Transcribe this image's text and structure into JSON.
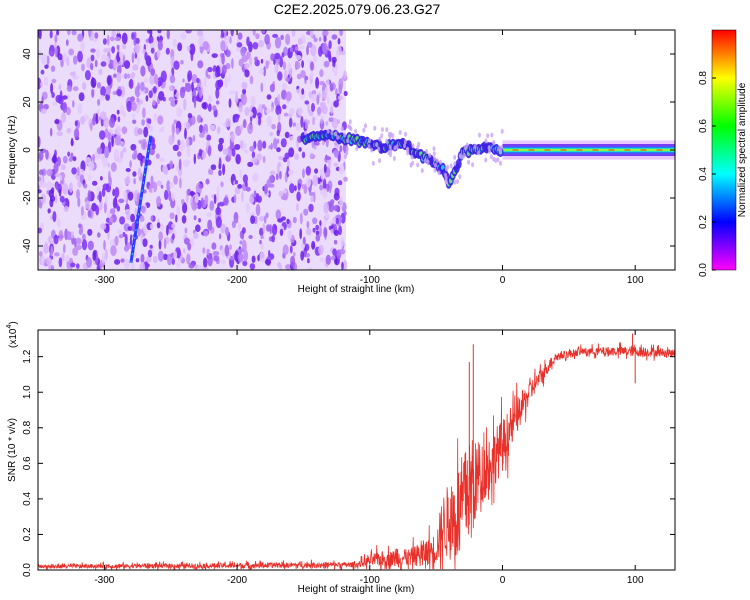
{
  "figure": {
    "title": "C2E2.2025.079.06.23.G27"
  },
  "chart_data": [
    {
      "type": "heatmap",
      "title": "C2E2.2025.079.06.23.G27",
      "xlabel": "Height of straight line (km)",
      "ylabel": "Frequency (Hz)",
      "xlim": [
        -350,
        130
      ],
      "ylim": [
        -50,
        50
      ],
      "xticks": [
        "-300",
        "-200",
        "-100",
        "0",
        "100"
      ],
      "yticks": [
        "-40",
        "-20",
        "0",
        "20",
        "40"
      ],
      "colorbar": {
        "label": "Normalized spectral amplitude",
        "ticks": [
          "0.0",
          "0.2",
          "0.4",
          "0.6",
          "0.8"
        ],
        "range": [
          0,
          1
        ],
        "colormap": "rainbow (magenta-blue-cyan-green-yellow-red)"
      },
      "noise_region_x": [
        -350,
        -118
      ],
      "carrier_track": [
        {
          "x": -150,
          "freq": 5
        },
        {
          "x": -130,
          "freq": 6
        },
        {
          "x": -110,
          "freq": 4
        },
        {
          "x": -90,
          "freq": 1
        },
        {
          "x": -75,
          "freq": 3
        },
        {
          "x": -60,
          "freq": -3
        },
        {
          "x": -45,
          "freq": -8
        },
        {
          "x": -40,
          "freq": -14
        },
        {
          "x": -30,
          "freq": -1
        },
        {
          "x": -15,
          "freq": 1
        },
        {
          "x": 0,
          "freq": 0
        },
        {
          "x": 130,
          "freq": 0
        }
      ],
      "spurious_streak": [
        {
          "x": -280,
          "freq": -47
        },
        {
          "x": -265,
          "freq": 6
        }
      ]
    },
    {
      "type": "line",
      "xlabel": "Height of straight line (km)",
      "ylabel": "SNR (10 * v/v)",
      "scale_note": "(x10",
      "scale_exp": "4",
      "xlim": [
        -350,
        130
      ],
      "ylim": [
        0,
        1.35
      ],
      "xticks": [
        "-300",
        "-200",
        "-100",
        "0",
        "100"
      ],
      "yticks": [
        "0.0",
        "0.2",
        "0.4",
        "0.6",
        "0.8",
        "1.0",
        "1.2"
      ],
      "color": "#e8312a",
      "envelope": [
        {
          "x": -350,
          "base": 0.02,
          "spread": 0.02
        },
        {
          "x": -200,
          "base": 0.025,
          "spread": 0.03
        },
        {
          "x": -110,
          "base": 0.03,
          "spread": 0.03
        },
        {
          "x": -95,
          "base": 0.06,
          "spread": 0.08
        },
        {
          "x": -70,
          "base": 0.07,
          "spread": 0.1
        },
        {
          "x": -50,
          "base": 0.12,
          "spread": 0.18
        },
        {
          "x": -45,
          "base": 0.25,
          "spread": 0.35
        },
        {
          "x": -35,
          "base": 0.3,
          "spread": 0.55
        },
        {
          "x": -25,
          "base": 0.45,
          "spread": 0.55
        },
        {
          "x": -15,
          "base": 0.55,
          "spread": 0.35
        },
        {
          "x": 0,
          "base": 0.7,
          "spread": 0.3
        },
        {
          "x": 20,
          "base": 1.0,
          "spread": 0.12
        },
        {
          "x": 40,
          "base": 1.2,
          "spread": 0.05
        },
        {
          "x": 60,
          "base": 1.23,
          "spread": 0.04
        },
        {
          "x": 100,
          "base": 1.23,
          "spread": 0.06
        },
        {
          "x": 130,
          "base": 1.22,
          "spread": 0.04
        }
      ],
      "spikes": [
        {
          "x": -22,
          "value": 1.27
        },
        {
          "x": -25,
          "value": 1.17
        },
        {
          "x": 98,
          "value": 1.33
        },
        {
          "x": 100,
          "value": 1.05
        }
      ]
    }
  ]
}
